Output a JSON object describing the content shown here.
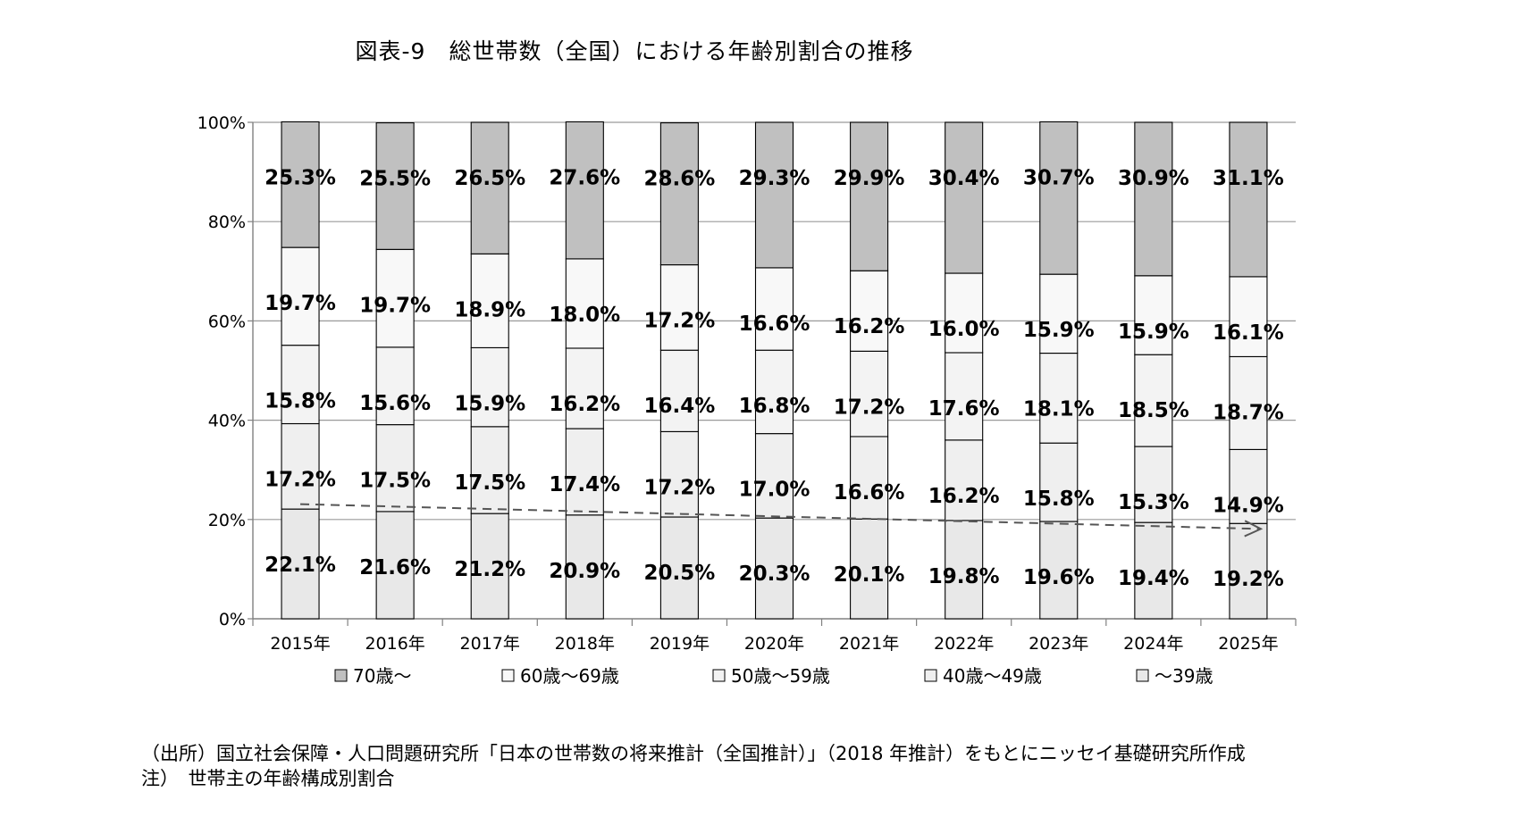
{
  "chart_data": {
    "type": "bar",
    "stacked": true,
    "title": "図表-9　総世帯数（全国）における年齢別割合の推移",
    "categories": [
      "2015年",
      "2016年",
      "2017年",
      "2018年",
      "2019年",
      "2020年",
      "2021年",
      "2022年",
      "2023年",
      "2024年",
      "2025年"
    ],
    "y_ticks": [
      "0%",
      "20%",
      "40%",
      "60%",
      "80%",
      "100%"
    ],
    "ylim": [
      0,
      100
    ],
    "grid": true,
    "legend_position": "bottom",
    "series": [
      {
        "name": "～39歳",
        "color": "#e8e8e8",
        "values": [
          22.1,
          21.6,
          21.2,
          20.9,
          20.5,
          20.3,
          20.1,
          19.8,
          19.6,
          19.4,
          19.2
        ],
        "labels": [
          "22.1%",
          "21.6%",
          "21.2%",
          "20.9%",
          "20.5%",
          "20.3%",
          "20.1%",
          "19.8%",
          "19.6%",
          "19.4%",
          "19.2%"
        ]
      },
      {
        "name": "40歳～49歳",
        "color": "#efefef",
        "values": [
          17.2,
          17.5,
          17.5,
          17.4,
          17.2,
          17.0,
          16.6,
          16.2,
          15.8,
          15.3,
          14.9
        ],
        "labels": [
          "17.2%",
          "17.5%",
          "17.5%",
          "17.4%",
          "17.2%",
          "17.0%",
          "16.6%",
          "16.2%",
          "15.8%",
          "15.3%",
          "14.9%"
        ]
      },
      {
        "name": "50歳～59歳",
        "color": "#f3f3f3",
        "values": [
          15.8,
          15.6,
          15.9,
          16.2,
          16.4,
          16.8,
          17.2,
          17.6,
          18.1,
          18.5,
          18.7
        ],
        "labels": [
          "15.8%",
          "15.6%",
          "15.9%",
          "16.2%",
          "16.4%",
          "16.8%",
          "17.2%",
          "17.6%",
          "18.1%",
          "18.5%",
          "18.7%"
        ]
      },
      {
        "name": "60歳～69歳",
        "color": "#f8f8f8",
        "values": [
          19.7,
          19.7,
          18.9,
          18.0,
          17.2,
          16.6,
          16.2,
          16.0,
          15.9,
          15.9,
          16.1
        ],
        "labels": [
          "19.7%",
          "19.7%",
          "18.9%",
          "18.0%",
          "17.2%",
          "16.6%",
          "16.2%",
          "16.0%",
          "15.9%",
          "15.9%",
          "16.1%"
        ]
      },
      {
        "name": "70歳～",
        "color": "#c0c0c0",
        "values": [
          25.3,
          25.5,
          26.5,
          27.6,
          28.6,
          29.3,
          29.9,
          30.4,
          30.7,
          30.9,
          31.1
        ],
        "labels": [
          "25.3%",
          "25.5%",
          "26.5%",
          "27.6%",
          "28.6%",
          "29.3%",
          "29.9%",
          "30.4%",
          "30.7%",
          "30.9%",
          "31.1%"
        ]
      }
    ],
    "legend_order": [
      "70歳～",
      "60歳～69歳",
      "50歳～59歳",
      "40歳～49歳",
      "～39歳"
    ],
    "annotations": [
      {
        "type": "trend-arrow",
        "style": "dashed",
        "color": "#555555",
        "from": [
          0,
          23.1
        ],
        "to": [
          10,
          18.1
        ]
      }
    ]
  },
  "notes": {
    "source": "（出所）国立社会保障・人口問題研究所「日本の世帯数の将来推計（全国推計）」（2018 年推計）をもとにニッセイ基礎研究所作成",
    "note": "注）　世帯主の年齢構成別割合"
  }
}
